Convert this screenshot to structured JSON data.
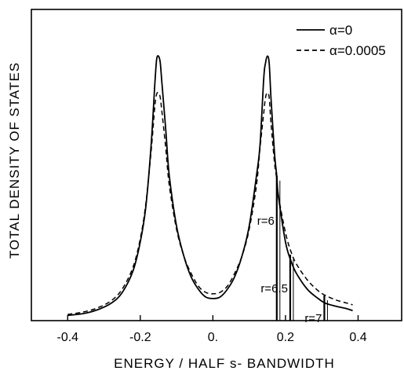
{
  "chart_data": {
    "type": "line",
    "title": "",
    "xlabel": "ENERGY / HALF  s- BANDWIDTH",
    "ylabel": "TOTAL DENSITY OF STATES",
    "xlim": [
      -0.5,
      0.52
    ],
    "ylim": [
      0,
      1.0
    ],
    "xticks": [
      {
        "value": -0.4,
        "label": "-0.4"
      },
      {
        "value": -0.2,
        "label": "-0.2"
      },
      {
        "value": 0.0,
        "label": "0."
      },
      {
        "value": 0.2,
        "label": "0.2"
      },
      {
        "value": 0.4,
        "label": "0.4"
      }
    ],
    "legend": {
      "position": "top-right",
      "entries": [
        {
          "label": "α=0",
          "style": "solid"
        },
        {
          "label": "α=0.0005",
          "style": "dashed"
        }
      ]
    },
    "series": [
      {
        "name": "α=0",
        "style": "solid",
        "x": [
          -0.4,
          -0.36,
          -0.32,
          -0.28,
          -0.25,
          -0.22,
          -0.2,
          -0.185,
          -0.17,
          -0.16,
          -0.155,
          -0.15,
          -0.145,
          -0.14,
          -0.13,
          -0.12,
          -0.1,
          -0.08,
          -0.06,
          -0.04,
          -0.02,
          0.0,
          0.02,
          0.04,
          0.06,
          0.08,
          0.1,
          0.12,
          0.13,
          0.14,
          0.145,
          0.15,
          0.155,
          0.16,
          0.17,
          0.176,
          0.18,
          0.2,
          0.215,
          0.23,
          0.26,
          0.29,
          0.31,
          0.34,
          0.37,
          0.385
        ],
        "y": [
          0.017,
          0.022,
          0.034,
          0.056,
          0.09,
          0.16,
          0.253,
          0.364,
          0.566,
          0.758,
          0.838,
          0.85,
          0.829,
          0.758,
          0.616,
          0.465,
          0.303,
          0.207,
          0.141,
          0.101,
          0.076,
          0.071,
          0.076,
          0.101,
          0.141,
          0.207,
          0.303,
          0.465,
          0.566,
          0.778,
          0.828,
          0.85,
          0.828,
          0.717,
          0.535,
          0.465,
          0.404,
          0.253,
          0.192,
          0.152,
          0.101,
          0.071,
          0.056,
          0.046,
          0.038,
          0.032
        ]
      },
      {
        "name": "α=0.0005",
        "style": "dashed",
        "x": [
          -0.4,
          -0.36,
          -0.32,
          -0.28,
          -0.25,
          -0.22,
          -0.2,
          -0.185,
          -0.17,
          -0.16,
          -0.155,
          -0.15,
          -0.145,
          -0.14,
          -0.13,
          -0.12,
          -0.1,
          -0.08,
          -0.06,
          -0.04,
          -0.02,
          0.0,
          0.02,
          0.04,
          0.06,
          0.08,
          0.1,
          0.12,
          0.13,
          0.14,
          0.145,
          0.15,
          0.155,
          0.16,
          0.17,
          0.176,
          0.18,
          0.2,
          0.215,
          0.23,
          0.26,
          0.29,
          0.31,
          0.34,
          0.37,
          0.385
        ],
        "y": [
          0.02,
          0.027,
          0.04,
          0.064,
          0.101,
          0.172,
          0.263,
          0.374,
          0.545,
          0.687,
          0.727,
          0.732,
          0.717,
          0.667,
          0.556,
          0.434,
          0.293,
          0.207,
          0.152,
          0.111,
          0.091,
          0.086,
          0.091,
          0.111,
          0.152,
          0.207,
          0.293,
          0.434,
          0.556,
          0.667,
          0.717,
          0.732,
          0.717,
          0.636,
          0.505,
          0.455,
          0.404,
          0.283,
          0.222,
          0.182,
          0.131,
          0.096,
          0.081,
          0.066,
          0.056,
          0.051
        ]
      }
    ],
    "annotations": [
      {
        "label": "r=6",
        "x": 0.176,
        "y_top": 0.465
      },
      {
        "label": "r=6.5",
        "x": 0.213,
        "y_top": 0.212
      },
      {
        "label": "r=7",
        "x": 0.307,
        "y_top": 0.081
      }
    ]
  }
}
